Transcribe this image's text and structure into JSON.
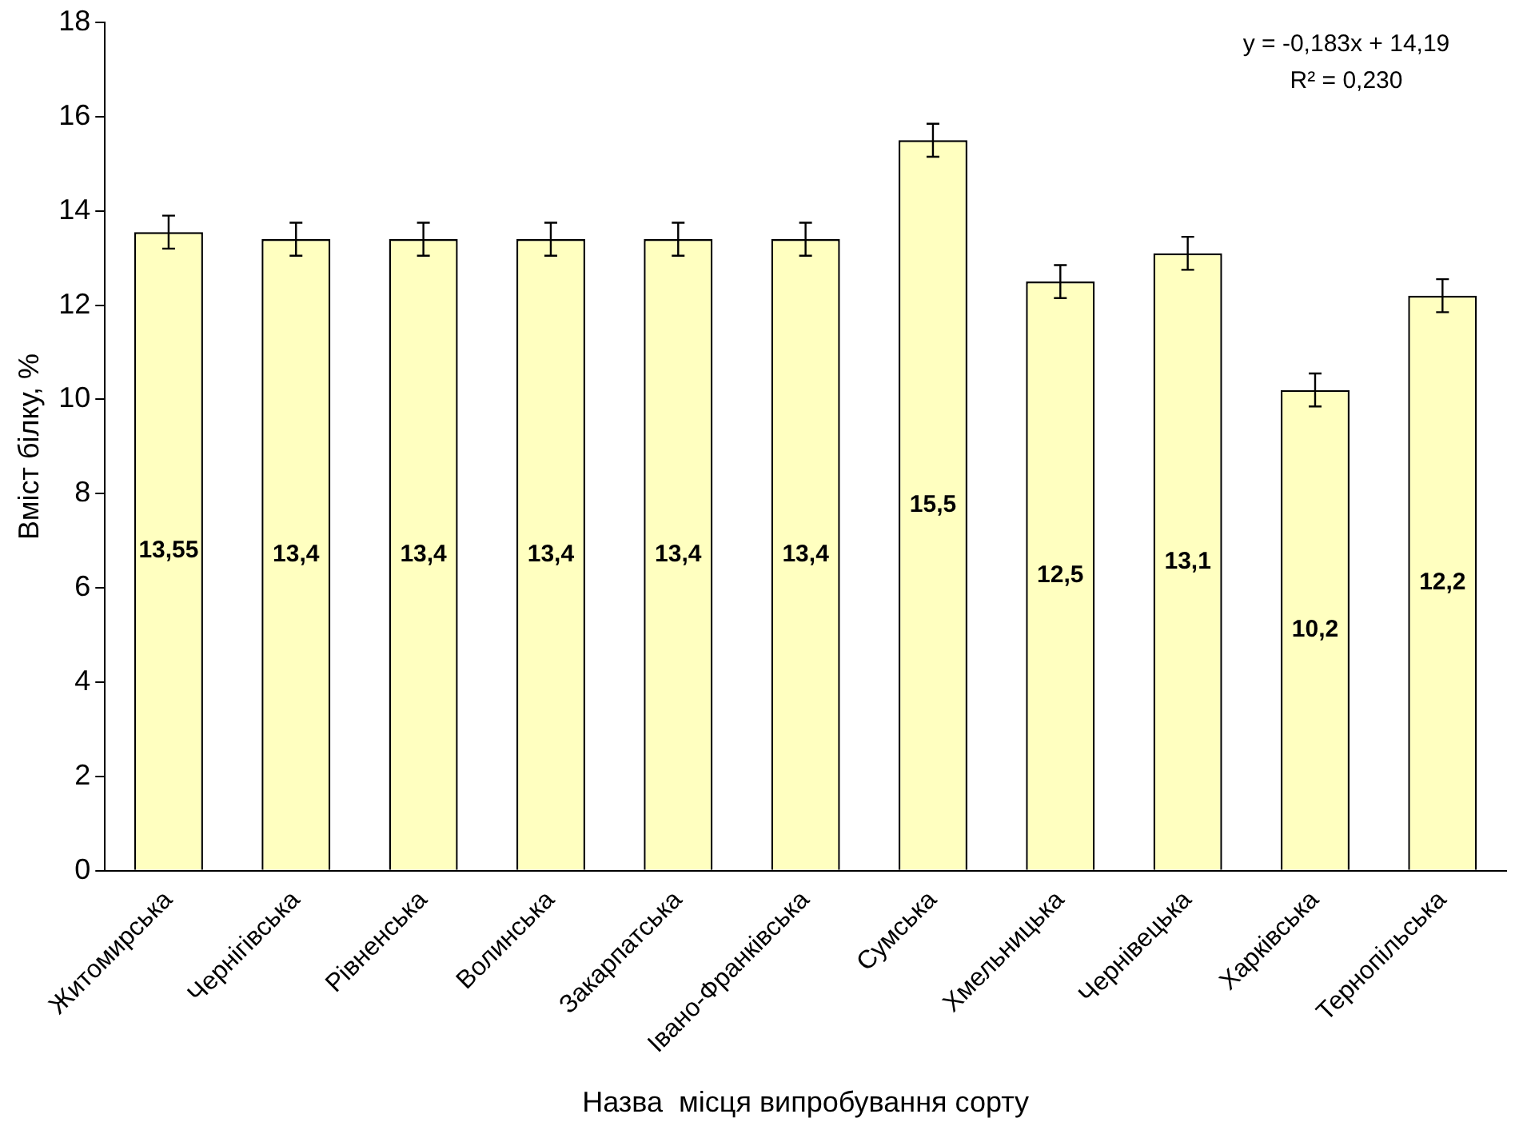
{
  "chart_data": {
    "type": "bar",
    "xlabel": "Назва  місця випробування сорту",
    "ylabel": "Вміст білку, %",
    "categories": [
      "Житомирська",
      "Чернігівська",
      "Рівненська",
      "Волинська",
      "Закарпатська",
      "Івано-Франківська",
      "Сумська",
      "Хмельницька",
      "Чернівецька",
      "Харківська",
      "Тернопільська"
    ],
    "values": [
      13.55,
      13.4,
      13.4,
      13.4,
      13.4,
      13.4,
      15.5,
      12.5,
      13.1,
      10.2,
      12.2
    ],
    "value_labels": [
      "13,55",
      "13,4",
      "13,4",
      "13,4",
      "13,4",
      "13,4",
      "15,5",
      "12,5",
      "13,1",
      "10,2",
      "12,2"
    ],
    "errors": [
      0.35,
      0.35,
      0.35,
      0.35,
      0.35,
      0.35,
      0.35,
      0.35,
      0.35,
      0.35,
      0.35
    ],
    "color": "#ffffc0",
    "ylim": [
      0,
      18
    ],
    "yticks": [
      0,
      2,
      4,
      6,
      8,
      10,
      12,
      14,
      16,
      18
    ],
    "grid": false,
    "legend": false,
    "annotations": [
      "y = -0,183x + 14,19",
      "R² = 0,230"
    ]
  }
}
